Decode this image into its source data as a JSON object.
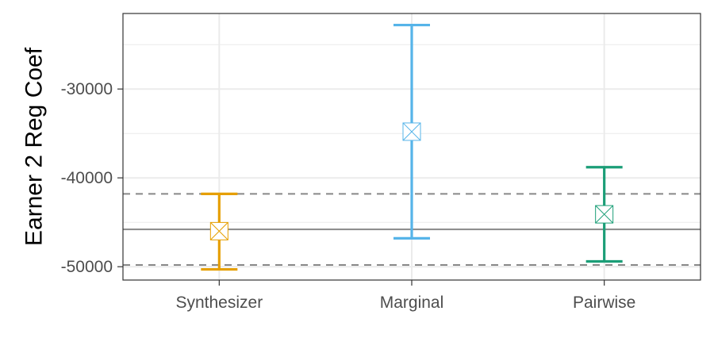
{
  "chart_data": {
    "type": "errorbar",
    "ylabel": "Earner 2 Reg Coef",
    "xlabel": "",
    "categories": [
      "Synthesizer",
      "Marginal",
      "Pairwise"
    ],
    "ylim": [
      -51500,
      -21500
    ],
    "y_ticks": [
      -50000,
      -40000,
      -30000
    ],
    "y_tick_labels": [
      "-50000",
      "-40000",
      "-30000"
    ],
    "grid": true,
    "series": [
      {
        "category": "Synthesizer",
        "estimate": -46000,
        "lower": -50300,
        "upper": -41800,
        "color": "#E69F00"
      },
      {
        "category": "Marginal",
        "estimate": -34800,
        "lower": -46800,
        "upper": -22800,
        "color": "#56B4E9"
      },
      {
        "category": "Pairwise",
        "estimate": -44100,
        "lower": -49400,
        "upper": -38800,
        "color": "#1B9E77"
      }
    ],
    "reference_lines": [
      {
        "value": -45800,
        "style": "solid",
        "color": "#888888"
      },
      {
        "value": -41800,
        "style": "dashed",
        "color": "#888888"
      },
      {
        "value": -49800,
        "style": "dashed",
        "color": "#888888"
      }
    ]
  }
}
